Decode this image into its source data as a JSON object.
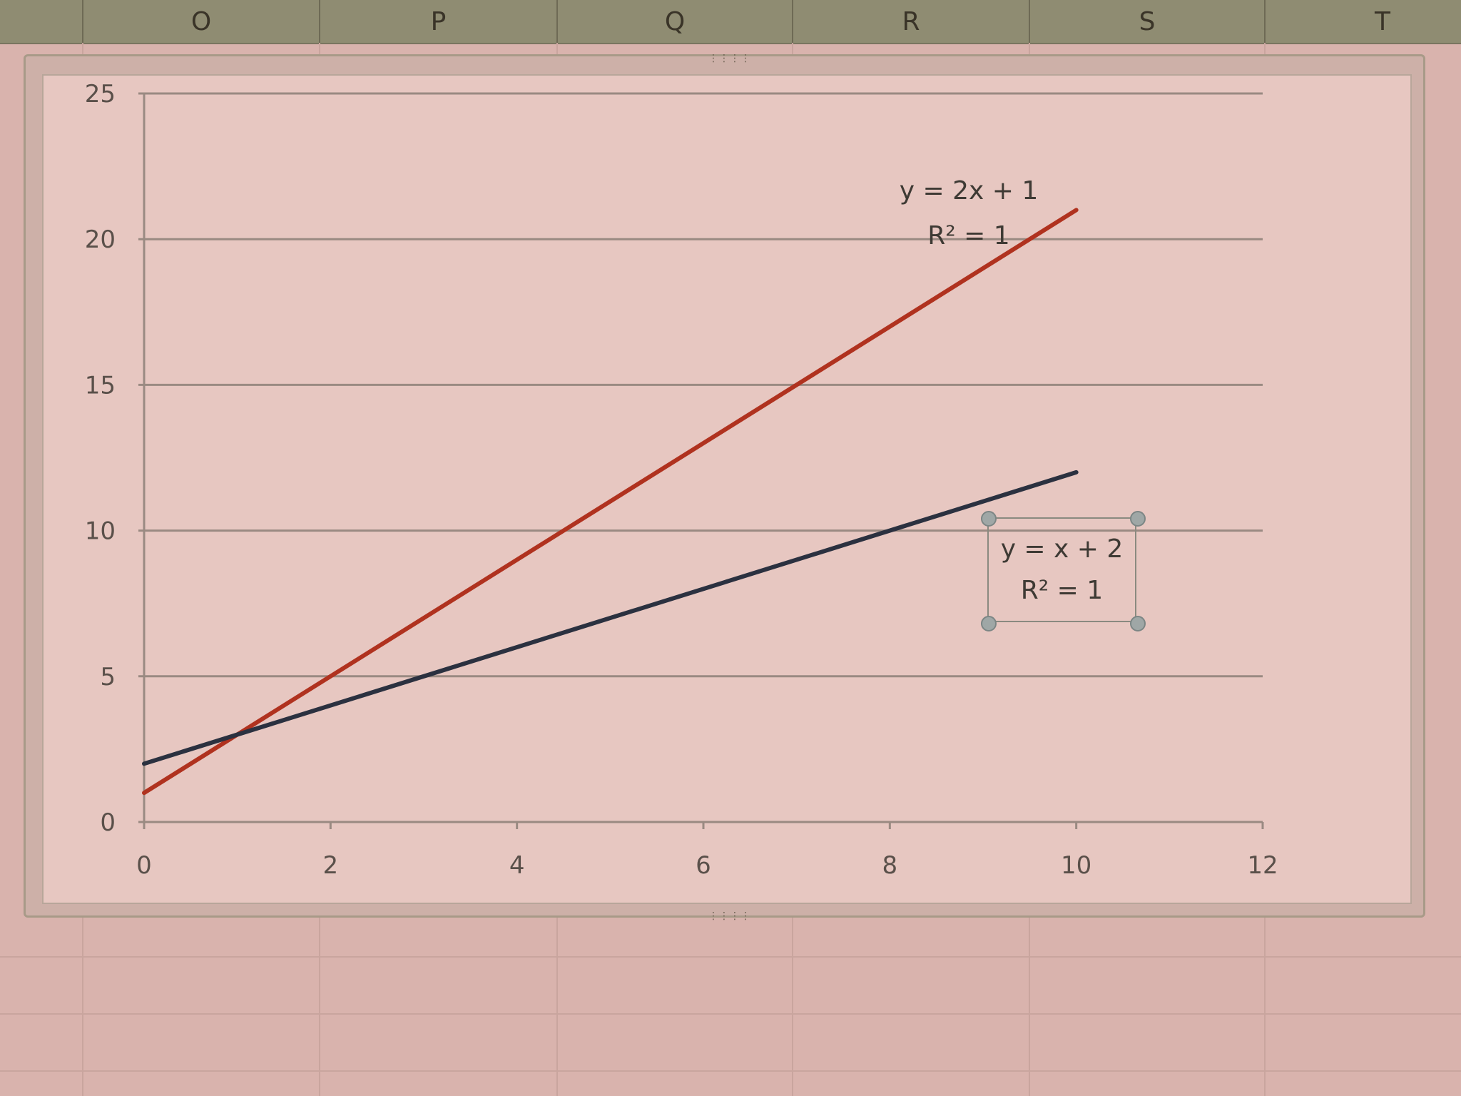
{
  "spreadsheet": {
    "columns": [
      "O",
      "P",
      "Q",
      "R",
      "S",
      "T"
    ]
  },
  "chart_data": {
    "type": "line",
    "title": "",
    "xlabel": "",
    "ylabel": "",
    "xlim": [
      0,
      12
    ],
    "ylim": [
      0,
      25
    ],
    "x_ticks": [
      "0",
      "2",
      "4",
      "6",
      "8",
      "10",
      "12"
    ],
    "y_ticks": [
      "0",
      "5",
      "10",
      "15",
      "20",
      "25"
    ],
    "grid": "horizontal",
    "series": [
      {
        "x": [
          0,
          10
        ],
        "y": [
          1,
          21
        ],
        "color": "#b0321f",
        "trendline_label": [
          "y = 2x + 1",
          "R² = 1"
        ]
      },
      {
        "x": [
          0,
          10
        ],
        "y": [
          2,
          12
        ],
        "color": "#2b3140",
        "trendline_label": [
          "y = x + 2",
          "R² = 1"
        ]
      }
    ]
  }
}
